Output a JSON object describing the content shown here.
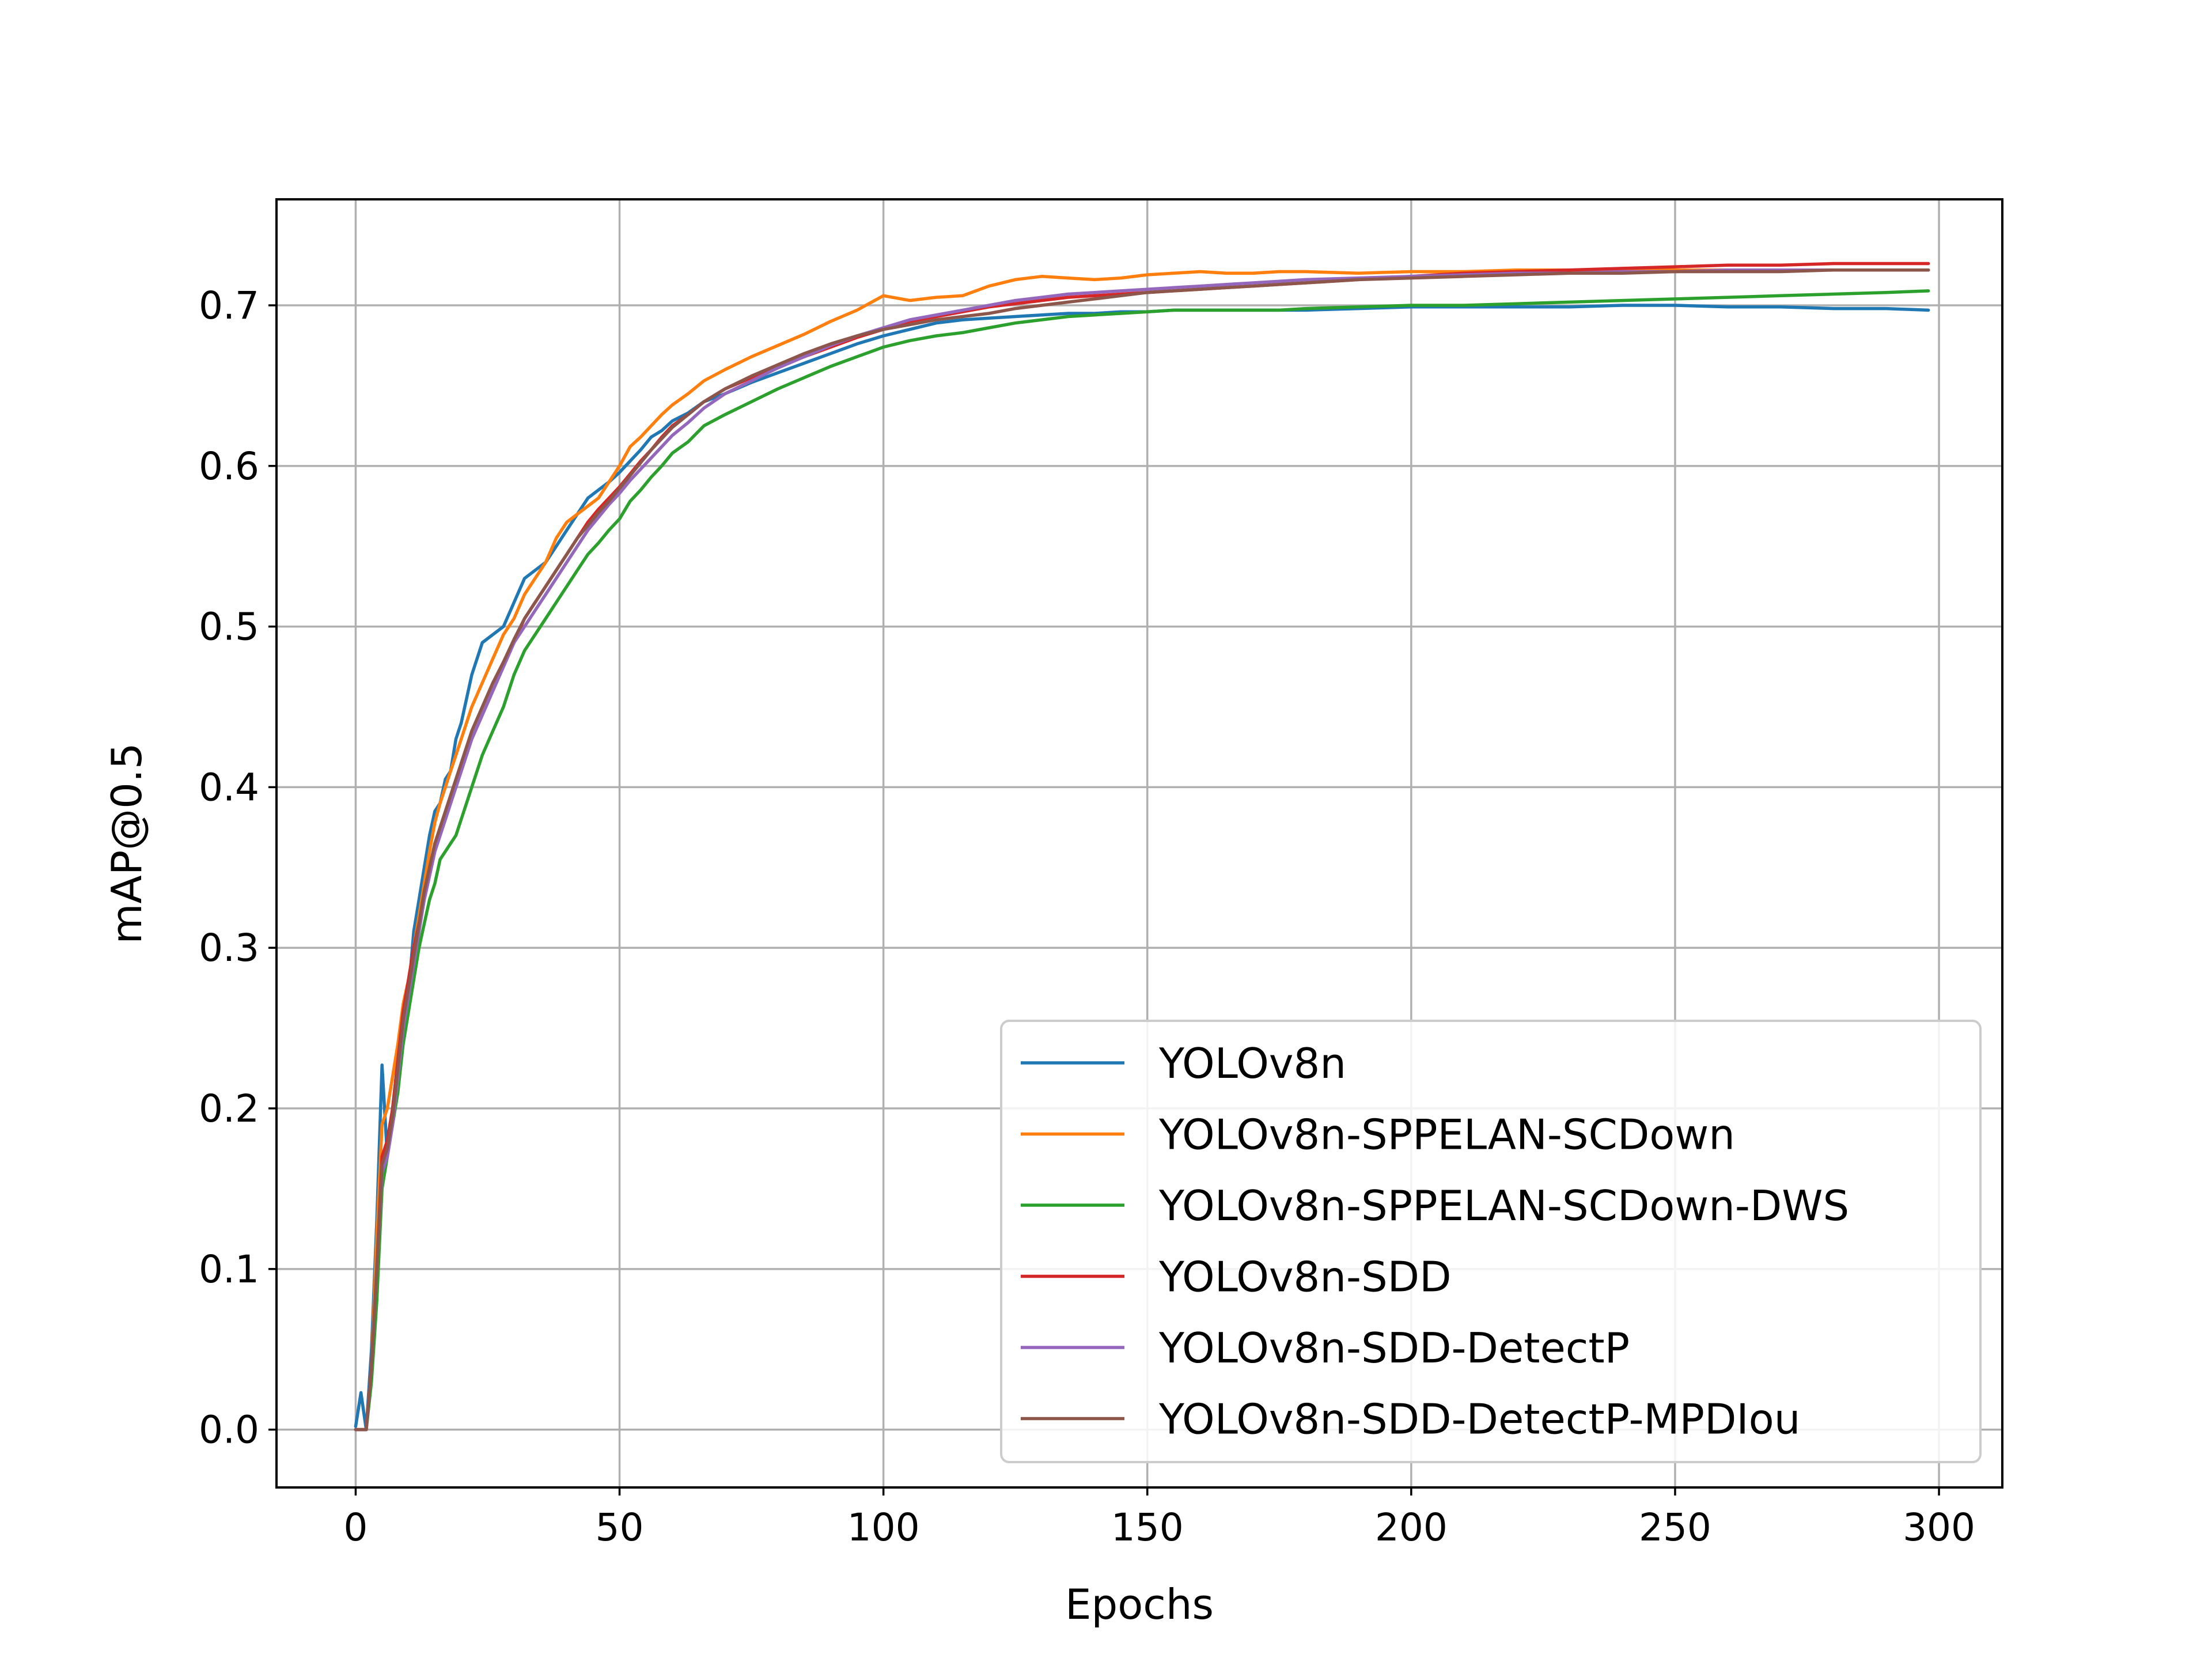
{
  "chart_data": {
    "type": "line",
    "title": "",
    "xlabel": "Epochs",
    "ylabel": "mAP@0.5",
    "xlim": [
      -15,
      312
    ],
    "ylim": [
      -0.036,
      0.766
    ],
    "xticks": [
      0,
      50,
      100,
      150,
      200,
      250,
      300
    ],
    "yticks": [
      0.0,
      0.1,
      0.2,
      0.3,
      0.4,
      0.5,
      0.6,
      0.7
    ],
    "grid": true,
    "legend_position": "lower-right",
    "x": [
      0,
      1,
      2,
      3,
      4,
      5,
      6,
      7,
      8,
      9,
      10,
      11,
      12,
      13,
      14,
      15,
      16,
      17,
      18,
      19,
      20,
      22,
      24,
      26,
      28,
      30,
      32,
      34,
      36,
      38,
      40,
      42,
      44,
      46,
      48,
      50,
      52,
      54,
      56,
      58,
      60,
      63,
      66,
      70,
      75,
      80,
      85,
      90,
      95,
      100,
      105,
      110,
      115,
      120,
      125,
      130,
      135,
      140,
      145,
      150,
      155,
      160,
      165,
      170,
      175,
      180,
      190,
      200,
      210,
      220,
      230,
      240,
      250,
      260,
      270,
      280,
      290,
      298
    ],
    "series": [
      {
        "name": "YOLOv8n",
        "color": "#1f77b4",
        "values": [
          0.002,
          0.023,
          0.0,
          0.05,
          0.13,
          0.227,
          0.17,
          0.2,
          0.23,
          0.262,
          0.272,
          0.31,
          0.33,
          0.35,
          0.37,
          0.385,
          0.39,
          0.405,
          0.41,
          0.43,
          0.44,
          0.47,
          0.49,
          0.495,
          0.5,
          0.515,
          0.53,
          0.535,
          0.54,
          0.55,
          0.56,
          0.57,
          0.58,
          0.585,
          0.59,
          0.596,
          0.603,
          0.61,
          0.618,
          0.622,
          0.628,
          0.633,
          0.64,
          0.645,
          0.652,
          0.658,
          0.664,
          0.67,
          0.676,
          0.681,
          0.685,
          0.689,
          0.691,
          0.692,
          0.693,
          0.694,
          0.695,
          0.695,
          0.696,
          0.696,
          0.697,
          0.697,
          0.697,
          0.697,
          0.697,
          0.697,
          0.698,
          0.699,
          0.699,
          0.699,
          0.699,
          0.7,
          0.7,
          0.699,
          0.699,
          0.698,
          0.698,
          0.697
        ]
      },
      {
        "name": "YOLOv8n-SPPELAN-SCDown",
        "color": "#ff7f0e",
        "values": [
          0.0,
          0.0,
          0.0,
          0.04,
          0.12,
          0.19,
          0.2,
          0.22,
          0.24,
          0.265,
          0.28,
          0.3,
          0.32,
          0.34,
          0.36,
          0.378,
          0.39,
          0.4,
          0.41,
          0.42,
          0.43,
          0.45,
          0.465,
          0.48,
          0.495,
          0.505,
          0.52,
          0.53,
          0.54,
          0.555,
          0.565,
          0.57,
          0.575,
          0.58,
          0.59,
          0.6,
          0.612,
          0.618,
          0.625,
          0.632,
          0.638,
          0.645,
          0.653,
          0.66,
          0.668,
          0.675,
          0.682,
          0.69,
          0.697,
          0.706,
          0.703,
          0.705,
          0.706,
          0.712,
          0.716,
          0.718,
          0.717,
          0.716,
          0.717,
          0.719,
          0.72,
          0.721,
          0.72,
          0.72,
          0.721,
          0.721,
          0.72,
          0.721,
          0.721,
          0.722,
          0.722,
          0.722,
          0.722,
          0.722,
          0.722,
          0.722,
          0.722,
          0.722
        ]
      },
      {
        "name": "YOLOv8n-SPPELAN-SCDown-DWS",
        "color": "#2ca02c",
        "values": [
          0.0,
          0.0,
          0.0,
          0.03,
          0.08,
          0.15,
          0.17,
          0.19,
          0.21,
          0.24,
          0.26,
          0.28,
          0.3,
          0.315,
          0.33,
          0.34,
          0.355,
          0.36,
          0.365,
          0.37,
          0.38,
          0.4,
          0.42,
          0.435,
          0.45,
          0.47,
          0.485,
          0.495,
          0.505,
          0.515,
          0.525,
          0.535,
          0.545,
          0.552,
          0.56,
          0.567,
          0.578,
          0.585,
          0.593,
          0.6,
          0.608,
          0.615,
          0.625,
          0.632,
          0.64,
          0.648,
          0.655,
          0.662,
          0.668,
          0.674,
          0.678,
          0.681,
          0.683,
          0.686,
          0.689,
          0.691,
          0.693,
          0.694,
          0.695,
          0.696,
          0.697,
          0.697,
          0.697,
          0.697,
          0.697,
          0.698,
          0.699,
          0.7,
          0.7,
          0.701,
          0.702,
          0.703,
          0.704,
          0.705,
          0.706,
          0.707,
          0.708,
          0.709
        ]
      },
      {
        "name": "YOLOv8n-SDD",
        "color": "#d62728",
        "values": [
          0.0,
          0.0,
          0.0,
          0.04,
          0.1,
          0.17,
          0.18,
          0.2,
          0.23,
          0.26,
          0.28,
          0.3,
          0.315,
          0.33,
          0.345,
          0.36,
          0.37,
          0.38,
          0.39,
          0.4,
          0.41,
          0.43,
          0.445,
          0.46,
          0.475,
          0.49,
          0.505,
          0.515,
          0.525,
          0.535,
          0.545,
          0.555,
          0.565,
          0.573,
          0.58,
          0.587,
          0.595,
          0.603,
          0.61,
          0.618,
          0.625,
          0.632,
          0.64,
          0.648,
          0.655,
          0.662,
          0.668,
          0.674,
          0.68,
          0.685,
          0.69,
          0.693,
          0.696,
          0.699,
          0.701,
          0.703,
          0.705,
          0.706,
          0.707,
          0.708,
          0.709,
          0.71,
          0.711,
          0.712,
          0.713,
          0.714,
          0.716,
          0.718,
          0.72,
          0.721,
          0.722,
          0.723,
          0.724,
          0.725,
          0.725,
          0.726,
          0.726,
          0.726
        ]
      },
      {
        "name": "YOLOv8n-SDD-DetectP",
        "color": "#9467bd",
        "values": [
          0.0,
          0.0,
          0.0,
          0.04,
          0.1,
          0.16,
          0.17,
          0.19,
          0.22,
          0.25,
          0.27,
          0.29,
          0.31,
          0.33,
          0.345,
          0.36,
          0.37,
          0.38,
          0.39,
          0.4,
          0.41,
          0.43,
          0.445,
          0.46,
          0.475,
          0.49,
          0.5,
          0.51,
          0.52,
          0.53,
          0.54,
          0.55,
          0.56,
          0.568,
          0.576,
          0.583,
          0.591,
          0.598,
          0.605,
          0.612,
          0.619,
          0.627,
          0.636,
          0.645,
          0.653,
          0.661,
          0.668,
          0.675,
          0.681,
          0.686,
          0.691,
          0.694,
          0.697,
          0.7,
          0.703,
          0.705,
          0.707,
          0.708,
          0.709,
          0.71,
          0.711,
          0.712,
          0.713,
          0.714,
          0.715,
          0.716,
          0.717,
          0.718,
          0.719,
          0.72,
          0.72,
          0.721,
          0.721,
          0.722,
          0.722,
          0.722,
          0.722,
          0.722
        ]
      },
      {
        "name": "YOLOv8n-SDD-DetectP-MPDIou",
        "color": "#8c564b",
        "values": [
          0.0,
          0.0,
          0.0,
          0.04,
          0.1,
          0.165,
          0.175,
          0.195,
          0.225,
          0.255,
          0.275,
          0.295,
          0.315,
          0.335,
          0.35,
          0.365,
          0.375,
          0.385,
          0.395,
          0.405,
          0.415,
          0.435,
          0.45,
          0.465,
          0.478,
          0.492,
          0.505,
          0.515,
          0.525,
          0.535,
          0.545,
          0.555,
          0.563,
          0.571,
          0.578,
          0.586,
          0.594,
          0.602,
          0.61,
          0.617,
          0.624,
          0.632,
          0.64,
          0.648,
          0.656,
          0.663,
          0.67,
          0.676,
          0.681,
          0.685,
          0.688,
          0.691,
          0.693,
          0.695,
          0.698,
          0.7,
          0.702,
          0.704,
          0.706,
          0.708,
          0.709,
          0.71,
          0.711,
          0.712,
          0.713,
          0.714,
          0.716,
          0.717,
          0.718,
          0.719,
          0.72,
          0.72,
          0.721,
          0.721,
          0.721,
          0.722,
          0.722,
          0.722
        ]
      }
    ]
  }
}
